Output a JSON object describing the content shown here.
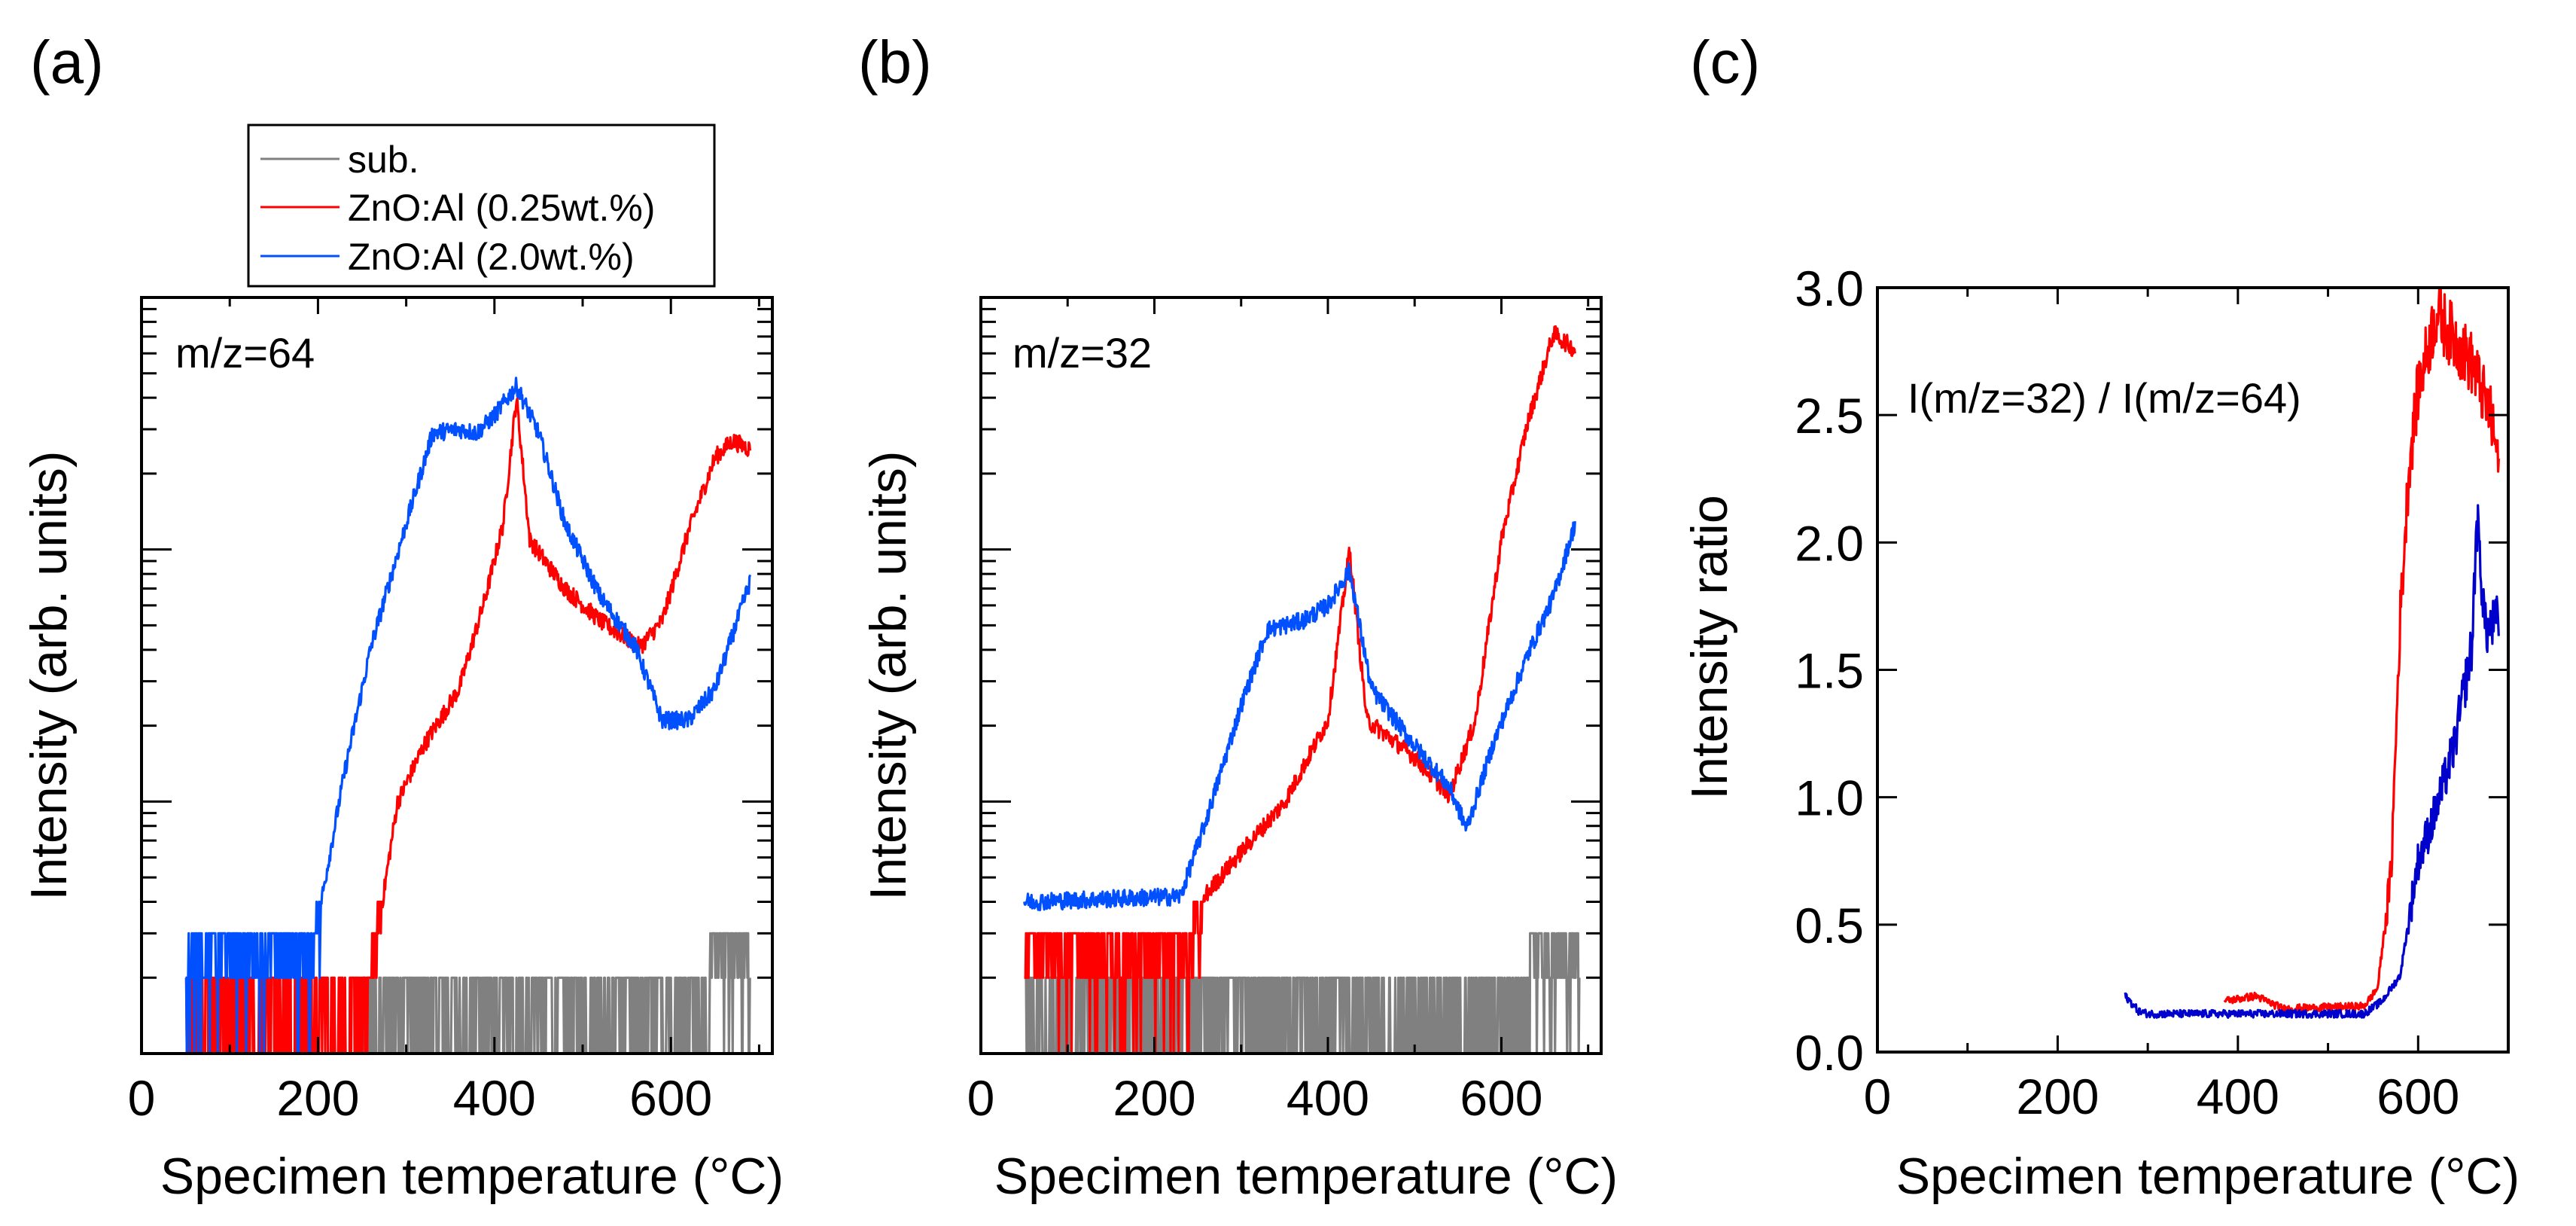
{
  "colors": {
    "sub": "#808080",
    "low_al": "#ff0000",
    "high_al": "#0050ff",
    "high_al_ratio": "#0000cc"
  },
  "legend": {
    "entries": [
      {
        "label": "sub.",
        "color": "#808080"
      },
      {
        "label": "ZnO:Al (0.25wt.%)",
        "color": "#ff0000"
      },
      {
        "label": "ZnO:Al (2.0wt.%)",
        "color": "#0050ff"
      }
    ]
  },
  "chart_data": [
    {
      "panel": "(a)",
      "type": "line",
      "annotation": "m/z=64",
      "xlabel": "Specimen temperature (°C)",
      "ylabel": "Intensity (arb. units)",
      "xlim": [
        0,
        715
      ],
      "xticks": [
        0,
        200,
        400,
        600
      ],
      "yscale": "log",
      "ylim": [
        1,
        1000
      ],
      "series": [
        {
          "name": "sub.",
          "color": "#808080",
          "x": [
            250,
            400,
            640,
            645,
            690
          ],
          "y": [
            1.5,
            1.5,
            1.5,
            2.4,
            2.4
          ],
          "xstart": 250
        },
        {
          "name": "ZnO:Al (0.25wt.%)",
          "color": "#ff0000",
          "x": [
            50,
            255,
            270,
            290,
            320,
            360,
            390,
            410,
            425,
            440,
            480,
            520,
            565,
            590,
            620,
            650,
            670,
            690
          ],
          "y": [
            1.5,
            1.6,
            3.4,
            9.9,
            16.7,
            28,
            65,
            127,
            400,
            109,
            70,
            52,
            41,
            52,
            118,
            232,
            270,
            250
          ]
        },
        {
          "name": "ZnO:Al (2.0wt.%)",
          "color": "#0050ff",
          "x": [
            50,
            190,
            200,
            230,
            260,
            300,
            330,
            360,
            380,
            400,
            425,
            450,
            480,
            520,
            560,
            590,
            620,
            650,
            690
          ],
          "y": [
            2,
            2.2,
            3.4,
            13,
            41,
            127,
            290,
            300,
            290,
            340,
            445,
            290,
            127,
            65,
            41,
            21,
            21,
            28,
            75
          ]
        }
      ]
    },
    {
      "panel": "(b)",
      "type": "line",
      "annotation": "m/z=32",
      "xlabel": "Specimen temperature (°C)",
      "ylabel": "Intensity (arb. units)",
      "xlim": [
        0,
        715
      ],
      "xticks": [
        0,
        200,
        400,
        600
      ],
      "yscale": "log",
      "ylim": [
        1,
        1000
      ],
      "series": [
        {
          "name": "sub.",
          "color": "#808080",
          "x": [
            50,
            400,
            600,
            690
          ],
          "y": [
            1.5,
            1.5,
            1.8,
            2.4
          ]
        },
        {
          "name": "ZnO:Al (0.25wt.%)",
          "color": "#ff0000",
          "x": [
            50,
            240,
            260,
            300,
            350,
            400,
            425,
            445,
            500,
            540,
            570,
            600,
            630,
            660,
            685
          ],
          "y": [
            2.5,
            2.7,
            4.3,
            6.3,
            9.9,
            21,
            100,
            21,
            15,
            10.6,
            21,
            109,
            316,
            720,
            620
          ]
        },
        {
          "name": "ZnO:Al (2.0wt.%)",
          "color": "#0050ff",
          "x": [
            50,
            230,
            260,
            300,
            330,
            370,
            400,
            425,
            450,
            500,
            540,
            560,
            590,
            630,
            660,
            685
          ],
          "y": [
            4,
            4.2,
            8.5,
            24,
            48,
            52,
            60,
            83,
            28,
            16.7,
            11.4,
            7.8,
            16.7,
            38,
            65,
            127
          ]
        }
      ]
    },
    {
      "panel": "(c)",
      "type": "line",
      "annotation": "I(m/z=32) / I(m/z=64)",
      "xlabel": "Specimen temperature (°C)",
      "ylabel": "Intensity ratio",
      "xlim": [
        0,
        700
      ],
      "xticks": [
        0,
        200,
        400,
        600
      ],
      "ylim": [
        0,
        3.0
      ],
      "yticks": [
        "0.0",
        "0.5",
        "1.0",
        "1.5",
        "2.0",
        "2.5",
        "3.0"
      ],
      "series": [
        {
          "name": "ZnO:Al (0.25wt.%)",
          "color": "#ff0000",
          "x": [
            385,
            420,
            450,
            540,
            555,
            570,
            580,
            590,
            600,
            620,
            640,
            660,
            680,
            690
          ],
          "y": [
            0.2,
            0.22,
            0.17,
            0.18,
            0.25,
            0.7,
            1.7,
            2.3,
            2.6,
            2.9,
            2.8,
            2.7,
            2.5,
            2.3
          ]
        },
        {
          "name": "ZnO:Al (2.0wt.%)",
          "color": "#0000cc",
          "x": [
            275,
            290,
            300,
            540,
            560,
            580,
            600,
            620,
            640,
            660,
            665,
            675,
            690
          ],
          "y": [
            0.22,
            0.16,
            0.15,
            0.15,
            0.2,
            0.3,
            0.75,
            0.95,
            1.2,
            1.6,
            2.1,
            1.65,
            1.7
          ]
        }
      ]
    }
  ]
}
